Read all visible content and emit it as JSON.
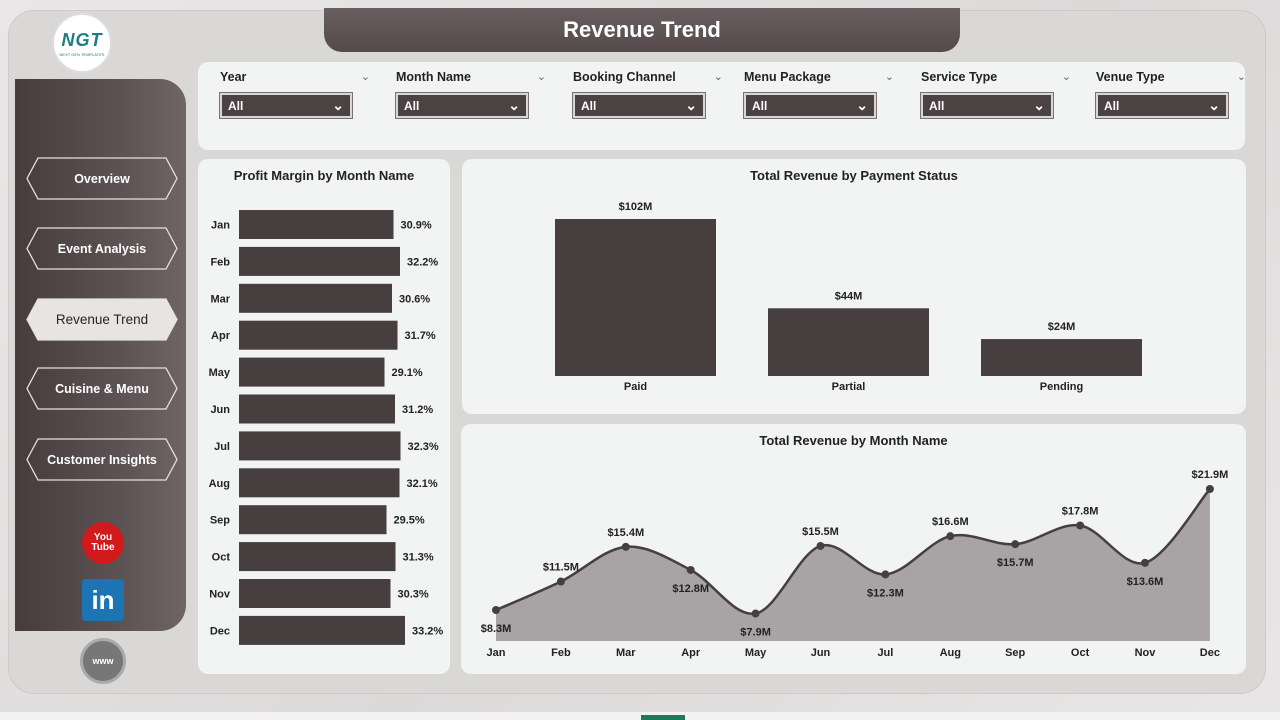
{
  "header": {
    "title": "Revenue Trend"
  },
  "logo": {
    "text": "NGT",
    "sub": "NEXT GEN TEMPLATES"
  },
  "nav": [
    {
      "label": "Overview",
      "active": false
    },
    {
      "label": "Event Analysis",
      "active": false
    },
    {
      "label": "Revenue Trend",
      "active": true
    },
    {
      "label": "Cuisine & Menu",
      "active": false
    },
    {
      "label": "Customer Insights",
      "active": false
    }
  ],
  "social": {
    "youtube": "You Tube",
    "linkedin": "in",
    "web": "www"
  },
  "filters": [
    {
      "label": "Year",
      "value": "All"
    },
    {
      "label": "Month Name",
      "value": "All"
    },
    {
      "label": "Booking Channel",
      "value": "All"
    },
    {
      "label": "Menu Package",
      "value": "All"
    },
    {
      "label": "Service Type",
      "value": "All"
    },
    {
      "label": "Venue Type",
      "value": "All"
    }
  ],
  "colors": {
    "bar": "#473e3f",
    "area": "#a8a3a4",
    "line": "#473e3f",
    "accent": "#5b5051"
  },
  "chart_data": [
    {
      "type": "bar",
      "orientation": "horizontal",
      "title": "Profit Margin by Month Name",
      "categories": [
        "Jan",
        "Feb",
        "Mar",
        "Apr",
        "May",
        "Jun",
        "Jul",
        "Aug",
        "Sep",
        "Oct",
        "Nov",
        "Dec"
      ],
      "values": [
        30.9,
        32.2,
        30.6,
        31.7,
        29.1,
        31.2,
        32.3,
        32.1,
        29.5,
        31.3,
        30.3,
        33.2
      ],
      "labels": [
        "30.9%",
        "32.2%",
        "30.6%",
        "31.7%",
        "29.1%",
        "31.2%",
        "32.3%",
        "32.1%",
        "29.5%",
        "31.3%",
        "30.3%",
        "33.2%"
      ]
    },
    {
      "type": "bar",
      "title": "Total Revenue by Payment Status",
      "categories": [
        "Paid",
        "Partial",
        "Pending"
      ],
      "values": [
        102,
        44,
        24
      ],
      "labels": [
        "$102M",
        "$44M",
        "$24M"
      ]
    },
    {
      "type": "area",
      "title": "Total Revenue by Month Name",
      "categories": [
        "Jan",
        "Feb",
        "Mar",
        "Apr",
        "May",
        "Jun",
        "Jul",
        "Aug",
        "Sep",
        "Oct",
        "Nov",
        "Dec"
      ],
      "values": [
        8.3,
        11.5,
        15.4,
        12.8,
        7.9,
        15.5,
        12.3,
        16.6,
        15.7,
        17.8,
        13.6,
        21.9
      ],
      "labels": [
        "$8.3M",
        "$11.5M",
        "$15.4M",
        "$12.8M",
        "$7.9M",
        "$15.5M",
        "$12.3M",
        "$16.6M",
        "$15.7M",
        "$17.8M",
        "$13.6M",
        "$21.9M"
      ]
    }
  ]
}
